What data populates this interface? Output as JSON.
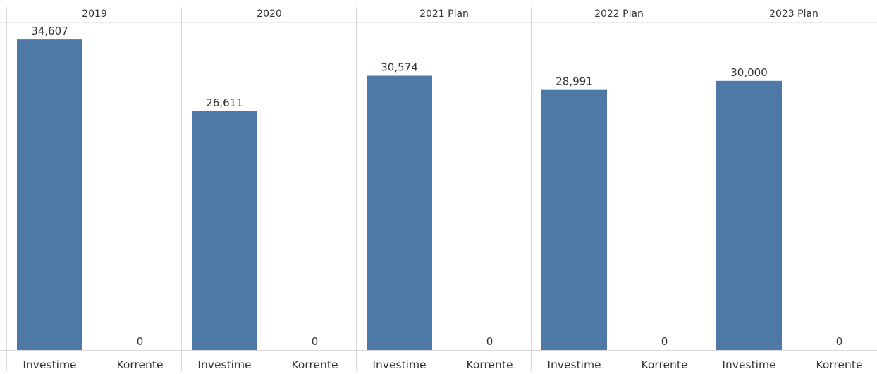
{
  "chart_data": {
    "type": "bar",
    "panels": [
      {
        "header": "2019",
        "categories": [
          "Investime",
          "Korrente"
        ],
        "values": [
          34607,
          0
        ],
        "labels": [
          "34,607",
          "0"
        ]
      },
      {
        "header": "2020",
        "categories": [
          "Investime",
          "Korrente"
        ],
        "values": [
          26611,
          0
        ],
        "labels": [
          "26,611",
          "0"
        ]
      },
      {
        "header": "2021 Plan",
        "categories": [
          "Investime",
          "Korrente"
        ],
        "values": [
          30574,
          0
        ],
        "labels": [
          "30,574",
          "0"
        ]
      },
      {
        "header": "2022 Plan",
        "categories": [
          "Investime",
          "Korrente"
        ],
        "values": [
          28991,
          0
        ],
        "labels": [
          "28,991",
          "0"
        ]
      },
      {
        "header": "2023 Plan",
        "categories": [
          "Investime",
          "Korrente"
        ],
        "values": [
          30000,
          0
        ],
        "labels": [
          "30,000",
          "0"
        ]
      }
    ],
    "ylim": [
      0,
      36500
    ],
    "bar_color": "#4e79a7",
    "grid": false,
    "legend": "none"
  }
}
